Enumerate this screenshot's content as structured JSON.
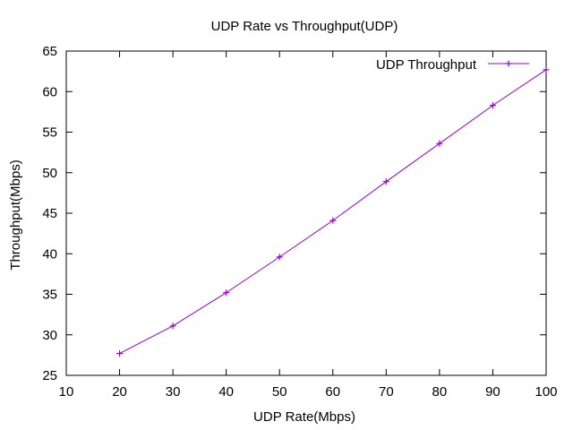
{
  "chart_data": {
    "type": "line",
    "title": "UDP Rate vs Throughput(UDP)",
    "xlabel": "UDP Rate(Mbps)",
    "ylabel": "Throughput(Mbps)",
    "xlim": [
      10,
      100
    ],
    "ylim": [
      25,
      65
    ],
    "x_ticks": [
      10,
      20,
      30,
      40,
      50,
      60,
      70,
      80,
      90,
      100
    ],
    "y_ticks": [
      25,
      30,
      35,
      40,
      45,
      50,
      55,
      60,
      65
    ],
    "grid": false,
    "legend_position": "top-right",
    "series": [
      {
        "name": "UDP Throughput",
        "color": "#9400d3",
        "marker": "plus",
        "x": [
          20,
          30,
          40,
          50,
          60,
          70,
          80,
          90,
          100
        ],
        "y": [
          27.7,
          31.1,
          35.2,
          39.6,
          44.1,
          48.9,
          53.6,
          58.3,
          62.7
        ]
      }
    ]
  }
}
